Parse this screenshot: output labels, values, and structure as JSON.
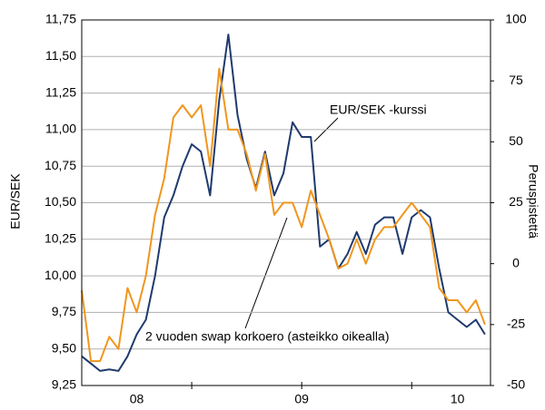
{
  "chart_data": {
    "type": "line",
    "y_label": "EUR/SEK",
    "y2_label": "Peruspistettä",
    "annotations": [
      "EUR/SEK -kurssi",
      "2 vuoden swap korkoero (asteikko oikealla)"
    ],
    "x": [
      0,
      1,
      2,
      3,
      4,
      5,
      6,
      7,
      8,
      9,
      10,
      11,
      12,
      13,
      14,
      15,
      16,
      17,
      18,
      19,
      20,
      21,
      22,
      23,
      24,
      25,
      26,
      27,
      28,
      29,
      30,
      31,
      32,
      33,
      34,
      35,
      36,
      37,
      38,
      39,
      40,
      41,
      42,
      43,
      44
    ],
    "series": [
      {
        "name": "EUR/SEK -kurssi",
        "color": "#1f3a6e",
        "values": [
          9.45,
          9.4,
          9.35,
          9.36,
          9.35,
          9.45,
          9.6,
          9.7,
          10.0,
          10.4,
          10.55,
          10.75,
          10.9,
          10.85,
          10.55,
          11.2,
          11.65,
          11.1,
          10.8,
          10.6,
          10.85,
          10.55,
          10.7,
          11.05,
          10.95,
          10.95,
          10.2,
          10.25,
          10.05,
          10.15,
          10.3,
          10.15,
          10.35,
          10.4,
          10.4,
          10.15,
          10.4,
          10.45,
          10.4,
          10.05,
          9.75,
          9.7,
          9.65,
          9.7,
          9.6
        ]
      },
      {
        "name": "2 vuoden swap korkoero (asteikko oikealla)",
        "color": "#f0961e",
        "axis": "y2",
        "values": [
          -11,
          -40,
          -40,
          -30,
          -35,
          -10,
          -20,
          -5,
          20,
          35,
          60,
          65,
          60,
          65,
          40,
          80,
          55,
          55,
          45,
          30,
          45,
          20,
          25,
          25,
          15,
          30,
          20,
          10,
          -2,
          0,
          10,
          0,
          10,
          15,
          15,
          20,
          25,
          20,
          15,
          -10,
          -15,
          -15,
          -20,
          -15,
          -25
        ]
      }
    ],
    "xlim": [
      0,
      44.6
    ],
    "xticks": [
      {
        "value": 6,
        "label": "08"
      },
      {
        "value": 24,
        "label": "09"
      },
      {
        "value": 41,
        "label": "10"
      }
    ],
    "xminorticks": [
      12,
      24,
      36
    ],
    "ylim": [
      9.25,
      11.75
    ],
    "yticks": [
      {
        "value": 9.25,
        "label": "9,25"
      },
      {
        "value": 9.5,
        "label": "9,50"
      },
      {
        "value": 9.75,
        "label": "9,75"
      },
      {
        "value": 10,
        "label": "10,00"
      },
      {
        "value": 10.25,
        "label": "10,25"
      },
      {
        "value": 10.5,
        "label": "10,50"
      },
      {
        "value": 10.75,
        "label": "10,75"
      },
      {
        "value": 11,
        "label": "11,00"
      },
      {
        "value": 11.25,
        "label": "11,25"
      },
      {
        "value": 11.5,
        "label": "11,50"
      },
      {
        "value": 11.75,
        "label": "11,75"
      }
    ],
    "y2lim": [
      -50,
      100
    ],
    "y2ticks": [
      -50,
      -25,
      0,
      25,
      50,
      75,
      100
    ],
    "grid": true
  }
}
